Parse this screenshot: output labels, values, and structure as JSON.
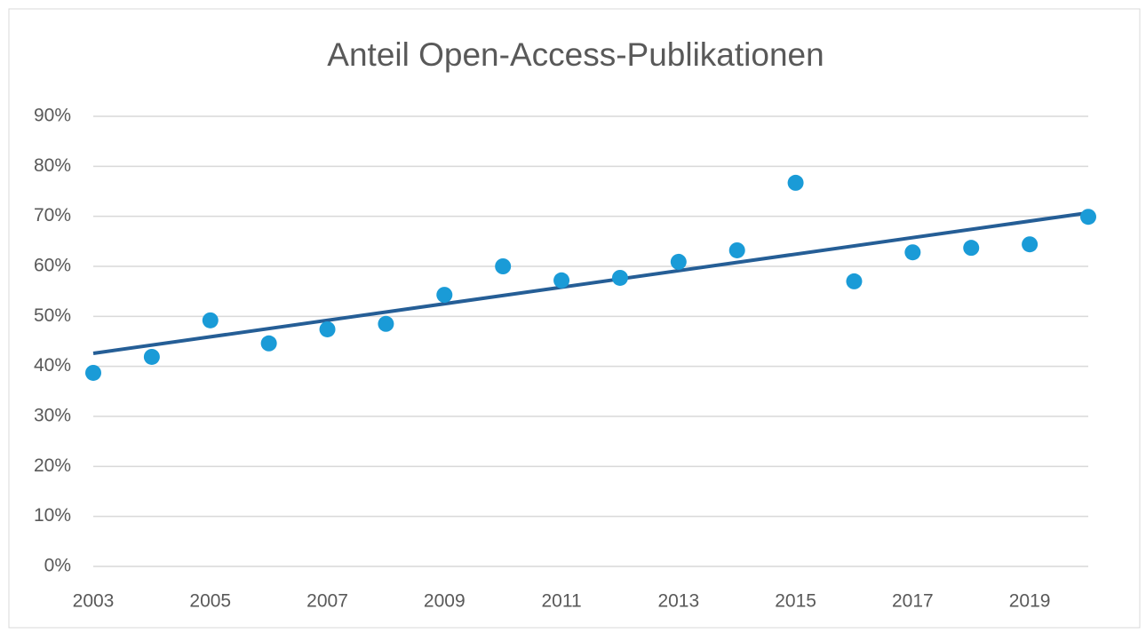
{
  "chart_data": {
    "type": "scatter",
    "title": "Anteil Open-Access-Publikationen",
    "x": [
      2003,
      2004,
      2005,
      2006,
      2007,
      2008,
      2009,
      2010,
      2011,
      2012,
      2013,
      2014,
      2015,
      2016,
      2017,
      2018,
      2019,
      2020
    ],
    "values": [
      38.7,
      41.9,
      49.2,
      44.6,
      47.4,
      48.5,
      54.3,
      60.0,
      57.2,
      57.7,
      60.9,
      63.2,
      76.7,
      57.0,
      62.8,
      63.7,
      64.4,
      69.9
    ],
    "color": "#1a9bd7",
    "trendline": {
      "x": [
        2003,
        2020
      ],
      "values": [
        42.6,
        70.7
      ],
      "color": "#255e96"
    },
    "xlim": [
      2003,
      2020
    ],
    "xticks": [
      2003,
      2005,
      2007,
      2009,
      2011,
      2013,
      2015,
      2017,
      2019
    ],
    "ylim": [
      0,
      90
    ],
    "yticks": [
      {
        "value": 0,
        "label": "0%"
      },
      {
        "value": 10,
        "label": "10%"
      },
      {
        "value": 20,
        "label": "20%"
      },
      {
        "value": 30,
        "label": "30%"
      },
      {
        "value": 40,
        "label": "40%"
      },
      {
        "value": 50,
        "label": "50%"
      },
      {
        "value": 60,
        "label": "60%"
      },
      {
        "value": 70,
        "label": "70%"
      },
      {
        "value": 80,
        "label": "80%"
      },
      {
        "value": 90,
        "label": "90%"
      }
    ],
    "grid": true
  }
}
